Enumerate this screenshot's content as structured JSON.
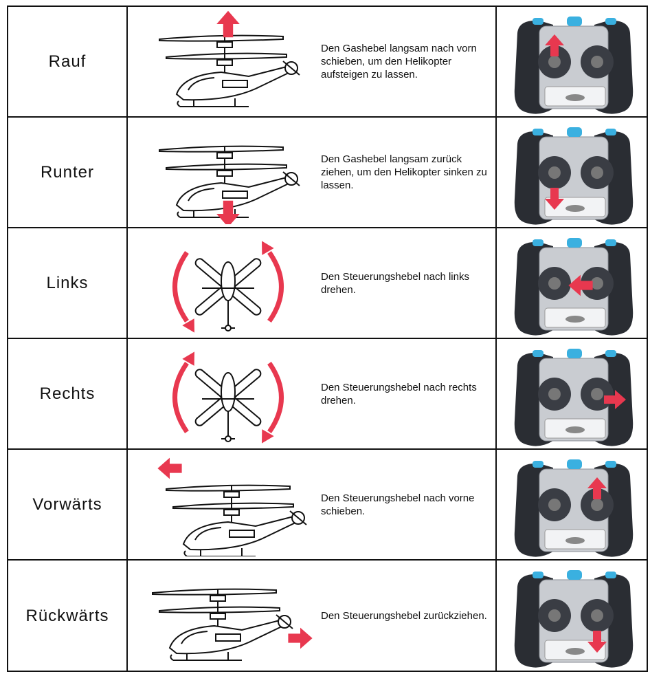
{
  "table": {
    "rows": [
      [
        "Rauf",
        "Den Gashebel langsam nach vorn schieben, um den Helikopter aufsteigen zu lassen."
      ],
      [
        "Runter",
        "Den Gashebel langsam zurück ziehen, um den Helikopter sinken zu lassen."
      ],
      [
        "Links",
        "Den Steuerungshebel nach links drehen."
      ],
      [
        "Rechts",
        "Den Steuerungshebel nach rechts drehen."
      ],
      [
        "Vorwärts",
        "Den Steuerungshebel nach vorne schieben."
      ],
      [
        "Rückwärts",
        "Den Steuerungshebel zurückziehen."
      ]
    ]
  }
}
